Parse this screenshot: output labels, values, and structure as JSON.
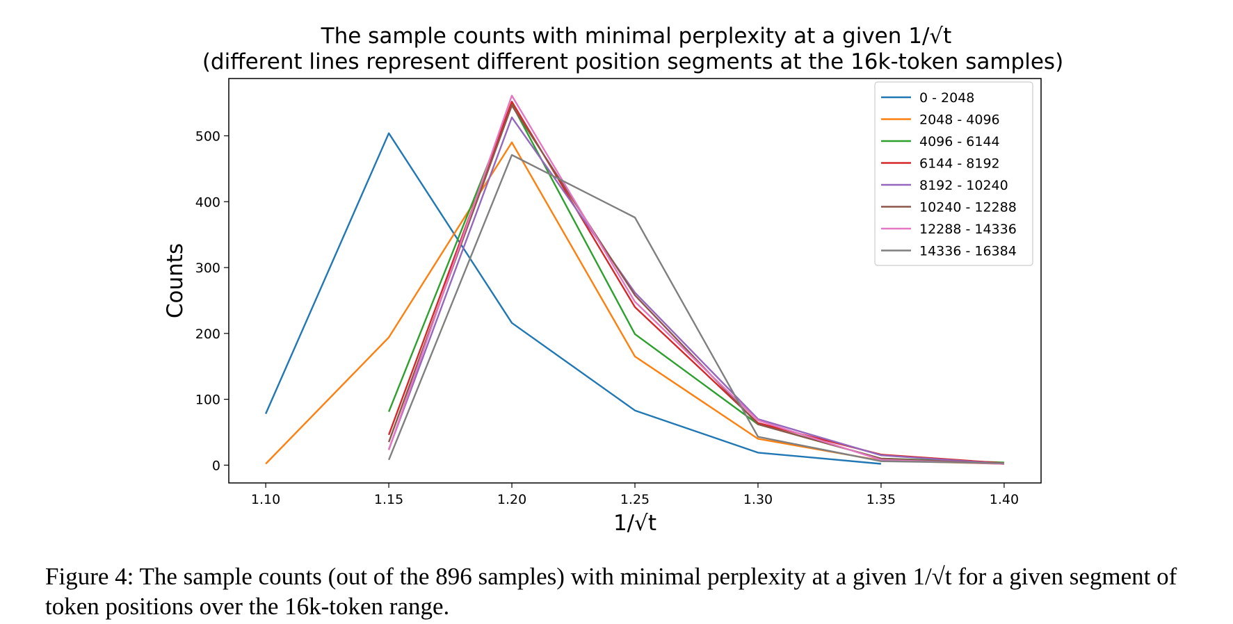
{
  "chart_data": {
    "type": "line",
    "title": "The sample counts with minimal perplexity at a given 1/√t",
    "subtitle": "(different lines represent different position segments at the 16k-token samples)",
    "xlabel": "1/√t",
    "ylabel": "Counts",
    "xlim": [
      1.085,
      1.415
    ],
    "ylim": [
      -27,
      587
    ],
    "xticks": [
      "1.10",
      "1.15",
      "1.20",
      "1.25",
      "1.30",
      "1.35",
      "1.40"
    ],
    "yticks": [
      "0",
      "100",
      "200",
      "300",
      "400",
      "500"
    ],
    "legend_position": "top-right",
    "grid": false,
    "series": [
      {
        "name": "0 - 2048",
        "color": "#1f77b4",
        "x": [
          1.1,
          1.15,
          1.2,
          1.25,
          1.3,
          1.35
        ],
        "values": [
          78,
          504,
          216,
          83,
          19,
          2
        ]
      },
      {
        "name": "2048 - 4096",
        "color": "#ff7f0e",
        "x": [
          1.1,
          1.15,
          1.2,
          1.25,
          1.3,
          1.35,
          1.4
        ],
        "values": [
          2,
          194,
          490,
          165,
          40,
          7,
          2
        ]
      },
      {
        "name": "4096 - 6144",
        "color": "#2ca02c",
        "x": [
          1.15,
          1.2,
          1.25,
          1.3,
          1.35,
          1.4
        ],
        "values": [
          81,
          548,
          199,
          62,
          10,
          4
        ]
      },
      {
        "name": "6144 - 8192",
        "color": "#d62728",
        "x": [
          1.15,
          1.2,
          1.25,
          1.3,
          1.35,
          1.4
        ],
        "values": [
          46,
          552,
          240,
          64,
          16,
          3
        ]
      },
      {
        "name": "8192 - 10240",
        "color": "#9467bd",
        "x": [
          1.15,
          1.2,
          1.25,
          1.3,
          1.35,
          1.4
        ],
        "values": [
          24,
          528,
          262,
          70,
          15,
          2
        ]
      },
      {
        "name": "10240 - 12288",
        "color": "#8c564b",
        "x": [
          1.15,
          1.2,
          1.25,
          1.3,
          1.35,
          1.4
        ],
        "values": [
          35,
          546,
          258,
          62,
          10,
          2
        ]
      },
      {
        "name": "12288 - 14336",
        "color": "#e377c2",
        "x": [
          1.15,
          1.2,
          1.25,
          1.3,
          1.35,
          1.4
        ],
        "values": [
          23,
          561,
          248,
          68,
          8,
          2
        ]
      },
      {
        "name": "14336 - 16384",
        "color": "#7f7f7f",
        "x": [
          1.15,
          1.2,
          1.25,
          1.3,
          1.35,
          1.4
        ],
        "values": [
          8,
          471,
          376,
          43,
          6,
          3
        ]
      }
    ]
  },
  "caption": {
    "label": "Figure 4:",
    "text": "The sample counts (out of the 896 samples) with minimal perplexity at a given 1/√t for a given segment of token positions over the 16k-token range."
  }
}
